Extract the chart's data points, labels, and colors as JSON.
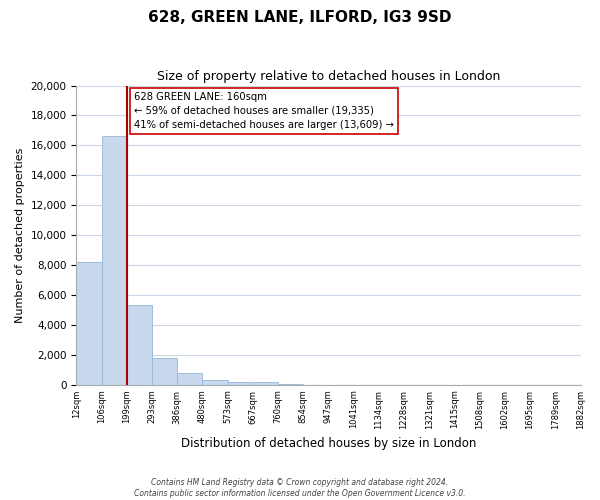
{
  "title": "628, GREEN LANE, ILFORD, IG3 9SD",
  "subtitle": "Size of property relative to detached houses in London",
  "xlabel": "Distribution of detached houses by size in London",
  "ylabel": "Number of detached properties",
  "bar_color": "#c8d9ee",
  "bar_edge_color": "#9ab5d8",
  "bar_heights": [
    8200,
    16600,
    5300,
    1800,
    750,
    280,
    200,
    170,
    50,
    0,
    0,
    0,
    0,
    0,
    0,
    0,
    0,
    0,
    0,
    0
  ],
  "tick_labels": [
    "12sqm",
    "106sqm",
    "199sqm",
    "293sqm",
    "386sqm",
    "480sqm",
    "573sqm",
    "667sqm",
    "760sqm",
    "854sqm",
    "947sqm",
    "1041sqm",
    "1134sqm",
    "1228sqm",
    "1321sqm",
    "1415sqm",
    "1508sqm",
    "1602sqm",
    "1695sqm",
    "1789sqm",
    "1882sqm"
  ],
  "vline_after_bar": 1,
  "ylim": [
    0,
    20000
  ],
  "yticks": [
    0,
    2000,
    4000,
    6000,
    8000,
    10000,
    12000,
    14000,
    16000,
    18000,
    20000
  ],
  "vline_color": "#aa0000",
  "annotation_box_text": "628 GREEN LANE: 160sqm\n← 59% of detached houses are smaller (19,335)\n41% of semi-detached houses are larger (13,609) →",
  "footer_line1": "Contains HM Land Registry data © Crown copyright and database right 2024.",
  "footer_line2": "Contains public sector information licensed under the Open Government Licence v3.0.",
  "background_color": "#ffffff",
  "grid_color": "#ccd8e8"
}
